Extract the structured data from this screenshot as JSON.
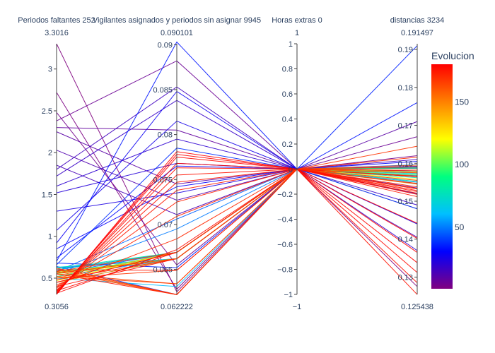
{
  "chart_data": {
    "type": "parallel_coordinates",
    "dimensions": [
      {
        "label": "Periodos faltantes 252",
        "range": [
          0.3056,
          3.3016
        ],
        "range_labels": [
          "0.3056",
          "3.3016"
        ],
        "ticks": [
          0.5,
          1,
          1.5,
          2,
          2.5,
          3
        ],
        "tick_labels": [
          "0.5",
          "1",
          "1.5",
          "2",
          "2.5",
          "3"
        ]
      },
      {
        "label": "Vigilantes asignados y periodos sin asignar 9945",
        "range": [
          0.062222,
          0.090101
        ],
        "range_labels": [
          "0.062222",
          "0.090101"
        ],
        "ticks": [
          0.065,
          0.07,
          0.075,
          0.08,
          0.085,
          0.09
        ],
        "tick_labels": [
          "0.065",
          "0.07",
          "0.075",
          "0.08",
          "0.085",
          "0.09"
        ]
      },
      {
        "label": "Horas extras 0",
        "range": [
          -1,
          1
        ],
        "range_labels": [
          "−1",
          "1"
        ],
        "ticks": [
          -1,
          -0.8,
          -0.6,
          -0.4,
          -0.2,
          0,
          0.2,
          0.4,
          0.6,
          0.8,
          1
        ],
        "tick_labels": [
          "−1",
          "−0.8",
          "−0.6",
          "−0.4",
          "−0.2",
          "0",
          "0.2",
          "0.4",
          "0.6",
          "0.8",
          "1"
        ]
      },
      {
        "label": "distancias 3234",
        "range": [
          0.125438,
          0.191497
        ],
        "range_labels": [
          "0.125438",
          "0.191497"
        ],
        "ticks": [
          0.13,
          0.14,
          0.15,
          0.16,
          0.17,
          0.18,
          0.19
        ],
        "tick_labels": [
          "0.13",
          "0.14",
          "0.15",
          "0.16",
          "0.17",
          "0.18",
          "0.19"
        ]
      }
    ],
    "colorbar": {
      "title": "Evolucion",
      "range": [
        1,
        180
      ],
      "ticks": [
        50,
        100,
        150
      ],
      "tick_labels": [
        "50",
        "100",
        "150"
      ],
      "colorscale": [
        "#800080",
        "#0000ff",
        "#00bfff",
        "#00ff80",
        "#ffff00",
        "#ff8000",
        "#ff0000"
      ]
    },
    "lines": [
      {
        "color": 1,
        "values": [
          3.3016,
          0.0625,
          0,
          0.1275
        ]
      },
      {
        "color": 2,
        "values": [
          2.72,
          0.0628,
          0,
          0.148
        ]
      },
      {
        "color": 4,
        "values": [
          2.48,
          0.0655,
          0,
          0.162
        ]
      },
      {
        "color": 6,
        "values": [
          2.38,
          0.0882,
          0,
          0.167
        ]
      },
      {
        "color": 8,
        "values": [
          2.3,
          0.0805,
          0,
          0.152
        ]
      },
      {
        "color": 10,
        "values": [
          2.25,
          0.0745,
          0,
          0.171
        ]
      },
      {
        "color": 12,
        "values": [
          2.03,
          0.0727,
          0,
          0.159
        ]
      },
      {
        "color": 14,
        "values": [
          1.85,
          0.0711,
          0,
          0.1405
        ]
      },
      {
        "color": 16,
        "values": [
          1.8,
          0.0853,
          0,
          0.161
        ]
      },
      {
        "color": 18,
        "values": [
          1.72,
          0.0838,
          0,
          0.149
        ]
      },
      {
        "color": 20,
        "values": [
          1.6,
          0.0795,
          0,
          0.137
        ]
      },
      {
        "color": 22,
        "values": [
          1.52,
          0.0768,
          0,
          0.158
        ]
      },
      {
        "color": 24,
        "values": [
          1.3,
          0.0735,
          0,
          0.144
        ]
      },
      {
        "color": 26,
        "values": [
          1.07,
          0.0815,
          0,
          0.1565
        ]
      },
      {
        "color": 28,
        "values": [
          0.92,
          0.0848,
          0,
          0.1535
        ]
      },
      {
        "color": 30,
        "values": [
          0.85,
          0.0742,
          0,
          0.1605
        ]
      },
      {
        "color": 32,
        "values": [
          0.74,
          0.0765,
          0,
          0.1592
        ]
      },
      {
        "color": 34,
        "values": [
          0.7,
          0.0903,
          0,
          0.176
        ]
      },
      {
        "color": 36,
        "values": [
          0.68,
          0.0652,
          0,
          0.191
        ]
      },
      {
        "color": 38,
        "values": [
          0.66,
          0.0785,
          0,
          0.152
        ]
      },
      {
        "color": 40,
        "values": [
          0.64,
          0.0622,
          0,
          0.1588
        ]
      },
      {
        "color": 42,
        "values": [
          0.62,
          0.0662,
          0,
          0.148
        ]
      },
      {
        "color": 44,
        "values": [
          0.6,
          0.0669,
          0,
          0.1578
        ]
      },
      {
        "color": 46,
        "values": [
          0.58,
          0.0706,
          0,
          0.1596
        ]
      },
      {
        "color": 48,
        "values": [
          0.56,
          0.0669,
          0,
          0.1568
        ]
      },
      {
        "color": 50,
        "values": [
          0.55,
          0.0695,
          0,
          0.1546
        ]
      },
      {
        "color": 55,
        "values": [
          0.52,
          0.0662,
          0,
          0.155
        ]
      },
      {
        "color": 60,
        "values": [
          0.5,
          0.0631,
          0,
          0.1586
        ]
      },
      {
        "color": 65,
        "values": [
          0.63,
          0.0662,
          0,
          0.1574
        ]
      },
      {
        "color": 70,
        "values": [
          0.6,
          0.0669,
          0,
          0.1572
        ]
      },
      {
        "color": 75,
        "values": [
          0.45,
          0.0662,
          0,
          0.1562
        ]
      },
      {
        "color": 80,
        "values": [
          0.62,
          0.0669,
          0,
          0.1552
        ]
      },
      {
        "color": 90,
        "values": [
          0.58,
          0.0662,
          0,
          0.1588
        ]
      },
      {
        "color": 100,
        "values": [
          0.52,
          0.0669,
          0,
          0.1569
        ]
      },
      {
        "color": 110,
        "values": [
          0.55,
          0.0662,
          0,
          0.1578
        ]
      },
      {
        "color": 120,
        "values": [
          0.47,
          0.0669,
          0,
          0.1558
        ]
      },
      {
        "color": 130,
        "values": [
          0.57,
          0.0662,
          0,
          0.1566
        ]
      },
      {
        "color": 140,
        "values": [
          0.5,
          0.0669,
          0,
          0.1575
        ]
      },
      {
        "color": 150,
        "values": [
          0.45,
          0.0662,
          0,
          0.1545
        ]
      },
      {
        "color": 160,
        "values": [
          0.6,
          0.0622,
          0,
          0.1595
        ]
      },
      {
        "color": 162,
        "values": [
          0.58,
          0.0622,
          0,
          0.1585
        ]
      },
      {
        "color": 164,
        "values": [
          0.55,
          0.0634,
          0,
          0.1575
        ]
      },
      {
        "color": 166,
        "values": [
          0.52,
          0.0634,
          0,
          0.1565
        ]
      },
      {
        "color": 168,
        "values": [
          0.5,
          0.0649,
          0,
          0.1555
        ]
      },
      {
        "color": 169,
        "values": [
          0.48,
          0.0662,
          0,
          0.158
        ]
      },
      {
        "color": 170,
        "values": [
          0.45,
          0.0669,
          0,
          0.1566
        ]
      },
      {
        "color": 171,
        "values": [
          0.42,
          0.0684,
          0,
          0.1547
        ]
      },
      {
        "color": 172,
        "values": [
          0.4,
          0.0709,
          0,
          0.1538
        ]
      },
      {
        "color": 173,
        "values": [
          0.38,
          0.0725,
          0,
          0.1534
        ]
      },
      {
        "color": 174,
        "values": [
          0.36,
          0.0738,
          0,
          0.1532
        ]
      },
      {
        "color": 175,
        "values": [
          0.35,
          0.0747,
          0,
          0.1528
        ]
      },
      {
        "color": 176,
        "values": [
          0.34,
          0.0755,
          0,
          0.1525
        ]
      },
      {
        "color": 177,
        "values": [
          0.33,
          0.0763,
          0,
          0.1521
        ]
      },
      {
        "color": 178,
        "values": [
          0.32,
          0.0768,
          0,
          0.1518
        ]
      },
      {
        "color": 179,
        "values": [
          0.315,
          0.0775,
          0,
          0.1442
        ]
      },
      {
        "color": 180,
        "values": [
          0.31,
          0.0778,
          0,
          0.1402
        ]
      },
      {
        "color": 180,
        "values": [
          0.3056,
          0.0781,
          0,
          0.1365
        ]
      },
      {
        "color": 179,
        "values": [
          0.32,
          0.0672,
          0,
          0.1338
        ]
      },
      {
        "color": 178,
        "values": [
          0.35,
          0.0669,
          0,
          0.1312
        ]
      },
      {
        "color": 177,
        "values": [
          0.4,
          0.0662,
          0,
          0.1285
        ]
      },
      {
        "color": 176,
        "values": [
          0.45,
          0.0669,
          0,
          0.1254
        ]
      },
      {
        "color": 175,
        "values": [
          0.6,
          0.0649,
          0,
          0.1512
        ]
      },
      {
        "color": 174,
        "values": [
          0.55,
          0.0622,
          0,
          0.1565
        ]
      },
      {
        "color": 170,
        "values": [
          0.62,
          0.0622,
          0,
          0.1616
        ]
      },
      {
        "color": 168,
        "values": [
          0.58,
          0.0669,
          0,
          0.1645
        ]
      },
      {
        "color": 165,
        "values": [
          0.56,
          0.0662,
          0,
          0.1591
        ]
      }
    ]
  }
}
